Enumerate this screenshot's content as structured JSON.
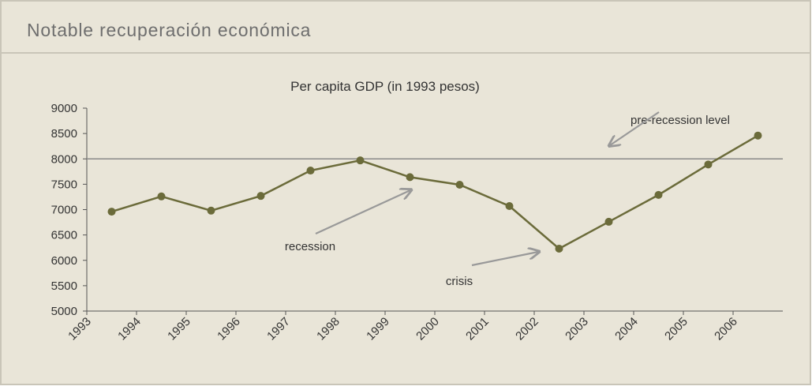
{
  "header": {
    "title": "Notable recuperación económica"
  },
  "chart_data": {
    "type": "line",
    "title": "Per capita GDP (in 1993 pesos)",
    "categories": [
      "1993",
      "1994",
      "1995",
      "1996",
      "1997",
      "1998",
      "1999",
      "2000",
      "2001",
      "2002",
      "2003",
      "2004",
      "2005",
      "2006"
    ],
    "values": [
      6960,
      7260,
      6980,
      7270,
      7770,
      7970,
      7640,
      7490,
      7070,
      6230,
      6760,
      7290,
      7890,
      8460
    ],
    "color": "#6b6b3a",
    "ylim": [
      5000,
      9000
    ],
    "yticks": [
      5000,
      5500,
      6000,
      6500,
      7000,
      7500,
      8000,
      8500,
      9000
    ],
    "grid": false,
    "reference_line": {
      "value": 8000,
      "label": "pre-recession level"
    },
    "annotations": [
      "recession",
      "crisis"
    ]
  }
}
